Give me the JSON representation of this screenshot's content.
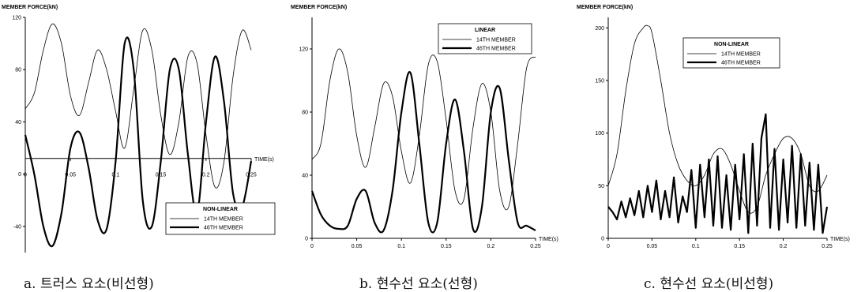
{
  "chart_data": [
    {
      "type": "line",
      "caption": "a. 트러스 요소(비선형)",
      "ylabel": "MEMBER FORCE(kN)",
      "xlabel": "TIME(s)",
      "xlim": [
        0,
        0.25
      ],
      "ylim": [
        -60,
        120
      ],
      "x_axis_at": 12,
      "xticks": [
        0,
        0.05,
        0.1,
        0.15,
        0.2,
        0.25
      ],
      "xtick_labels": [
        "0",
        "0.05",
        "0.1",
        "0.15",
        "0.2",
        "0.25"
      ],
      "yticks": [
        -40,
        0,
        40,
        80,
        120
      ],
      "ytick_labels": [
        "-40",
        "0",
        "40",
        "80",
        "120"
      ],
      "legend_title": "NON-LINEAR",
      "legend_position": "bottom-right",
      "series": [
        {
          "name": "14TH MEMBER",
          "style": "thin",
          "x": [
            0,
            0.01,
            0.02,
            0.03,
            0.04,
            0.05,
            0.06,
            0.07,
            0.08,
            0.09,
            0.1,
            0.11,
            0.12,
            0.13,
            0.14,
            0.15,
            0.16,
            0.17,
            0.18,
            0.19,
            0.2,
            0.21,
            0.22,
            0.23,
            0.24,
            0.25
          ],
          "y": [
            50,
            62,
            95,
            115,
            100,
            60,
            45,
            70,
            95,
            80,
            48,
            20,
            65,
            110,
            95,
            45,
            15,
            40,
            90,
            85,
            30,
            -10,
            10,
            75,
            110,
            95
          ]
        },
        {
          "name": "46TH MEMBER",
          "style": "thick",
          "x": [
            0,
            0.01,
            0.02,
            0.03,
            0.04,
            0.05,
            0.06,
            0.07,
            0.08,
            0.09,
            0.1,
            0.11,
            0.12,
            0.13,
            0.14,
            0.15,
            0.16,
            0.17,
            0.18,
            0.19,
            0.2,
            0.21,
            0.22,
            0.23,
            0.24,
            0.25
          ],
          "y": [
            30,
            0,
            -40,
            -55,
            -30,
            20,
            32,
            5,
            -35,
            -42,
            10,
            100,
            80,
            -20,
            -40,
            10,
            80,
            80,
            15,
            -30,
            40,
            90,
            55,
            -15,
            -25,
            10
          ]
        }
      ]
    },
    {
      "type": "line",
      "caption": "b. 현수선 요소(선형)",
      "ylabel": "MEMBER FORCE(kN)",
      "xlabel": "TIME(s)",
      "xlim": [
        0,
        0.25
      ],
      "ylim": [
        0,
        140
      ],
      "x_axis_at": 0,
      "xticks": [
        0,
        0.05,
        0.1,
        0.15,
        0.2,
        0.25
      ],
      "xtick_labels": [
        "0",
        "0.05",
        "0.1",
        "0.15",
        "0.2",
        "0.25"
      ],
      "yticks": [
        0,
        40,
        80,
        120
      ],
      "ytick_labels": [
        "0",
        "40",
        "80",
        "120"
      ],
      "legend_title": "LINEAR",
      "legend_position": "top-right",
      "series": [
        {
          "name": "14TH MEMBER",
          "style": "thin",
          "x": [
            0,
            0.01,
            0.02,
            0.03,
            0.04,
            0.05,
            0.06,
            0.07,
            0.08,
            0.09,
            0.1,
            0.11,
            0.12,
            0.13,
            0.14,
            0.15,
            0.16,
            0.17,
            0.18,
            0.19,
            0.2,
            0.21,
            0.22,
            0.23,
            0.24,
            0.25
          ],
          "y": [
            50,
            60,
            100,
            120,
            105,
            65,
            45,
            70,
            98,
            90,
            55,
            35,
            65,
            110,
            112,
            75,
            30,
            25,
            70,
            98,
            80,
            30,
            20,
            60,
            108,
            115
          ]
        },
        {
          "name": "46TH MEMBER",
          "style": "thick",
          "x": [
            0,
            0.01,
            0.02,
            0.03,
            0.04,
            0.05,
            0.06,
            0.07,
            0.08,
            0.09,
            0.1,
            0.11,
            0.12,
            0.13,
            0.14,
            0.15,
            0.16,
            0.17,
            0.18,
            0.19,
            0.2,
            0.21,
            0.22,
            0.23,
            0.24,
            0.25
          ],
          "y": [
            30,
            15,
            8,
            6,
            8,
            25,
            30,
            10,
            5,
            30,
            80,
            105,
            60,
            10,
            10,
            60,
            88,
            55,
            6,
            20,
            80,
            95,
            50,
            10,
            8,
            5
          ]
        }
      ]
    },
    {
      "type": "line",
      "caption": "c. 현수선 요소(비선형)",
      "ylabel": "MEMBER FORCE(kN)",
      "xlabel": "TIME(s)",
      "xlim": [
        0,
        0.25
      ],
      "ylim": [
        0,
        210
      ],
      "x_axis_at": 0,
      "xticks": [
        0,
        0.05,
        0.1,
        0.15,
        0.2,
        0.25
      ],
      "xtick_labels": [
        "0",
        "0.05",
        "0.1",
        "0.15",
        "0.2",
        "0.25"
      ],
      "yticks": [
        0,
        50,
        100,
        150,
        200
      ],
      "ytick_labels": [
        "0",
        "50",
        "100",
        "150",
        "200"
      ],
      "legend_title": "NON-LINEAR",
      "legend_position": "top-center",
      "series": [
        {
          "name": "14TH MEMBER",
          "style": "thin",
          "x": [
            0,
            0.01,
            0.02,
            0.03,
            0.04,
            0.045,
            0.05,
            0.06,
            0.07,
            0.08,
            0.09,
            0.1,
            0.11,
            0.12,
            0.13,
            0.14,
            0.15,
            0.16,
            0.17,
            0.18,
            0.19,
            0.2,
            0.21,
            0.22,
            0.23,
            0.24,
            0.25
          ],
          "y": [
            50,
            80,
            140,
            185,
            200,
            202,
            195,
            150,
            100,
            70,
            55,
            50,
            60,
            80,
            85,
            70,
            45,
            25,
            30,
            60,
            80,
            95,
            95,
            80,
            50,
            45,
            60
          ]
        },
        {
          "name": "46TH MEMBER",
          "style": "thick",
          "x": [
            0,
            0.005,
            0.01,
            0.015,
            0.02,
            0.025,
            0.03,
            0.035,
            0.04,
            0.045,
            0.05,
            0.055,
            0.06,
            0.065,
            0.07,
            0.075,
            0.08,
            0.085,
            0.09,
            0.095,
            0.1,
            0.105,
            0.11,
            0.115,
            0.12,
            0.125,
            0.13,
            0.135,
            0.14,
            0.145,
            0.15,
            0.155,
            0.16,
            0.165,
            0.17,
            0.175,
            0.18,
            0.185,
            0.19,
            0.195,
            0.2,
            0.205,
            0.21,
            0.215,
            0.22,
            0.225,
            0.23,
            0.235,
            0.24,
            0.245,
            0.25
          ],
          "y": [
            30,
            25,
            18,
            35,
            20,
            38,
            22,
            45,
            20,
            50,
            25,
            55,
            18,
            45,
            20,
            58,
            15,
            40,
            25,
            65,
            10,
            70,
            20,
            75,
            12,
            78,
            10,
            60,
            8,
            70,
            18,
            80,
            5,
            90,
            12,
            95,
            118,
            10,
            85,
            8,
            75,
            15,
            88,
            10,
            80,
            12,
            72,
            8,
            70,
            5,
            30
          ]
        }
      ]
    }
  ]
}
